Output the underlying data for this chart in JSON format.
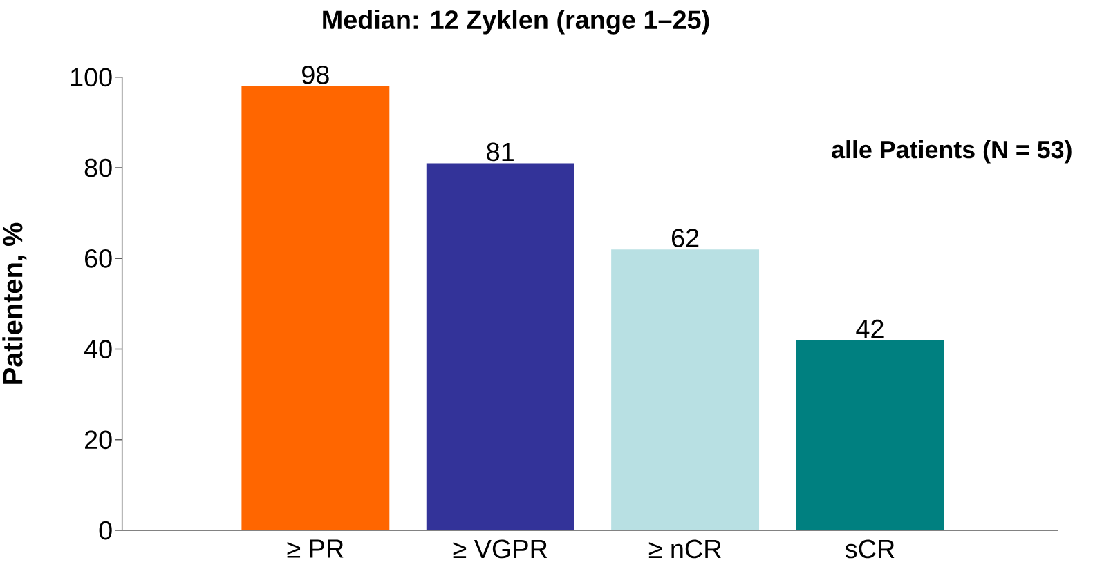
{
  "chart_data": {
    "type": "bar",
    "title": "Median: 12 Zyklen (range 1–25)",
    "ylabel": "Patienten, %",
    "categories": [
      "≥ PR",
      "≥ VGPR",
      "≥ nCR",
      "sCR"
    ],
    "values": [
      98,
      81,
      62,
      42
    ],
    "colors": [
      "#ff6600",
      "#333399",
      "#b8e0e3",
      "#008080"
    ],
    "ylim": [
      0,
      100
    ],
    "yticks": [
      0,
      20,
      40,
      60,
      80,
      100
    ],
    "data_labels": true,
    "grid": false,
    "annotations": [
      "alle Patients (N = 53)"
    ]
  }
}
